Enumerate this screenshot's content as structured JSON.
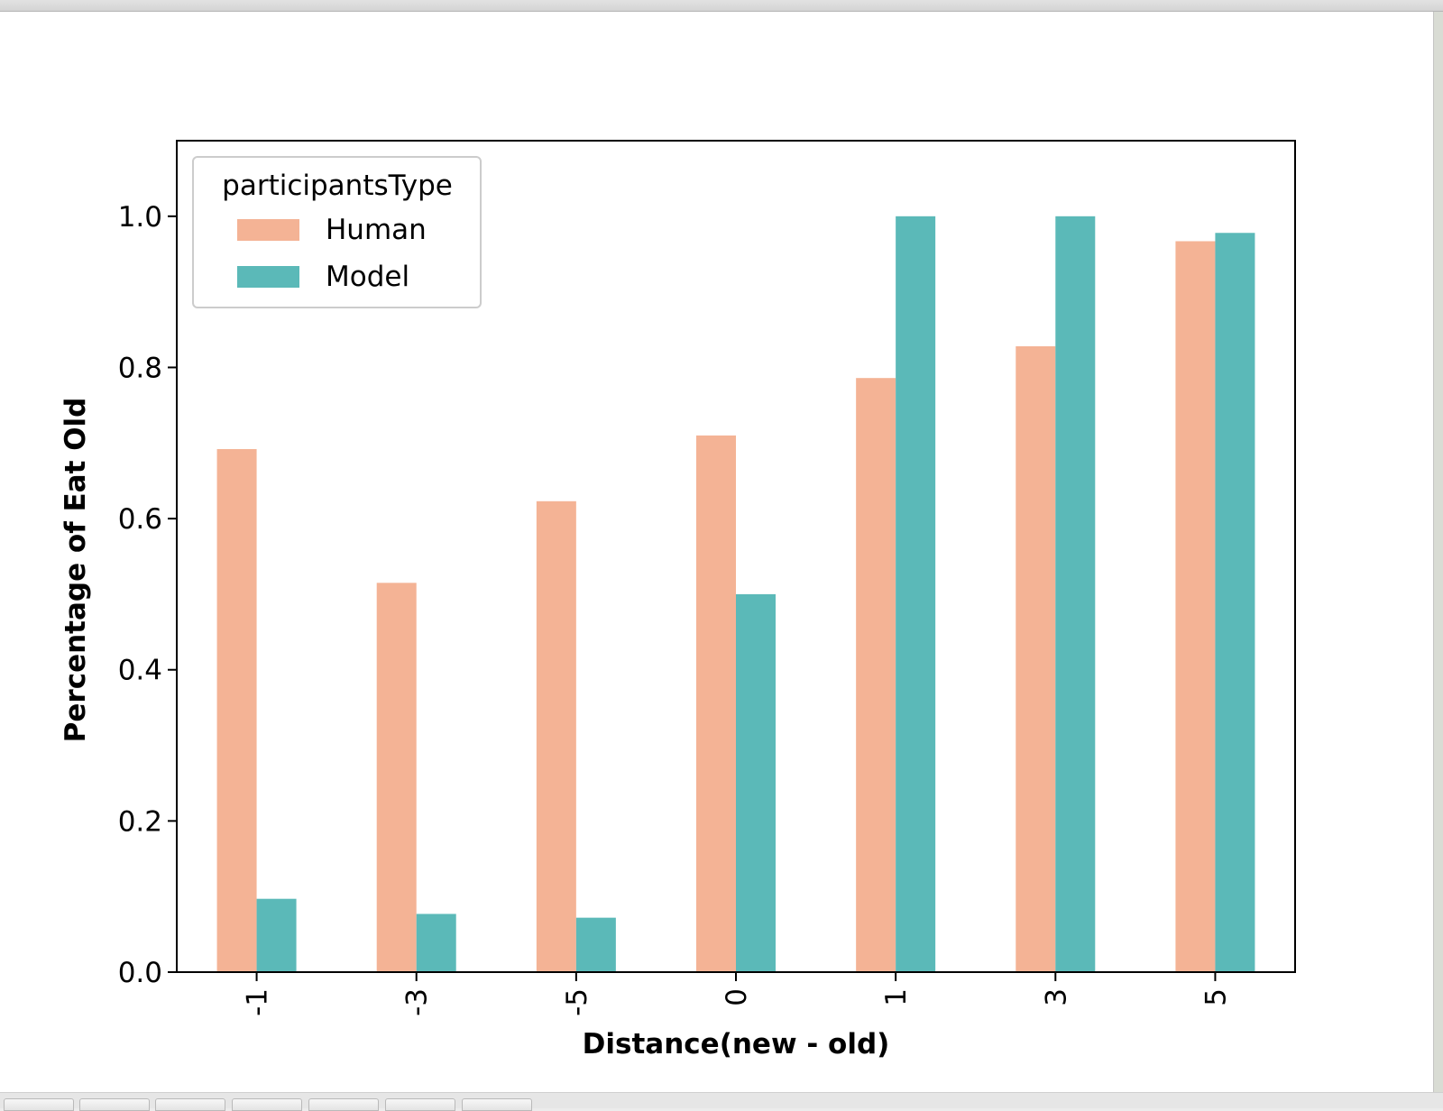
{
  "window": {
    "toolbar_buttons": [
      "home",
      "back",
      "forward",
      "pan",
      "zoom",
      "configure-subplots",
      "save"
    ]
  },
  "colors": {
    "human": "#f4b395",
    "model": "#5bb9b8",
    "axis": "#000000",
    "legend_border": "#cccccc"
  },
  "chart_data": {
    "type": "bar",
    "title": "",
    "xlabel": "Distance(new - old)",
    "ylabel": "Percentage of Eat Old",
    "categories": [
      "-1",
      "-3",
      "-5",
      "0",
      "1",
      "3",
      "5"
    ],
    "ylim": [
      0.0,
      1.1
    ],
    "yticks": [
      "0.0",
      "0.2",
      "0.4",
      "0.6",
      "0.8",
      "1.0"
    ],
    "grid": false,
    "legend": {
      "title": "participantsType",
      "placement": "upper-left"
    },
    "series": [
      {
        "name": "Human",
        "values": [
          0.692,
          0.515,
          0.623,
          0.71,
          0.786,
          0.828,
          0.967
        ]
      },
      {
        "name": "Model",
        "values": [
          0.097,
          0.077,
          0.072,
          0.5,
          1.0,
          1.0,
          0.978
        ]
      }
    ]
  }
}
